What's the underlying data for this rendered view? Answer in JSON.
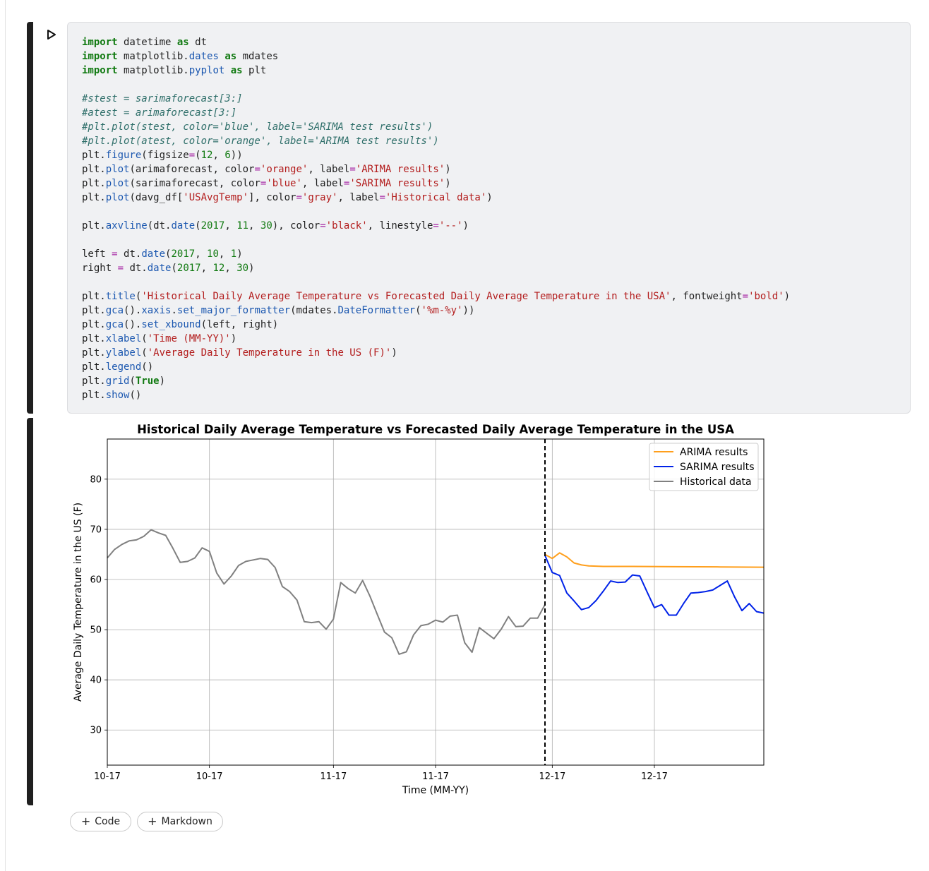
{
  "cell": {
    "code_lines": [
      [
        [
          "kw",
          "import"
        ],
        [
          "t",
          " datetime "
        ],
        [
          "kw",
          "as"
        ],
        [
          "t",
          " dt"
        ]
      ],
      [
        [
          "kw",
          "import"
        ],
        [
          "t",
          " matplotlib."
        ],
        [
          "fn",
          "dates"
        ],
        [
          "t",
          " "
        ],
        [
          "kw",
          "as"
        ],
        [
          "t",
          " mdates"
        ]
      ],
      [
        [
          "kw",
          "import"
        ],
        [
          "t",
          " matplotlib."
        ],
        [
          "fn",
          "pyplot"
        ],
        [
          "t",
          " "
        ],
        [
          "kw",
          "as"
        ],
        [
          "t",
          " plt"
        ]
      ],
      [],
      [
        [
          "cm",
          "#stest = sarimaforecast[3:]"
        ]
      ],
      [
        [
          "cm",
          "#atest = arimaforecast[3:]"
        ]
      ],
      [
        [
          "cm",
          "#plt.plot(stest, color='blue', label='SARIMA test results')"
        ]
      ],
      [
        [
          "cm",
          "#plt.plot(atest, color='orange', label='ARIMA test results')"
        ]
      ],
      [
        [
          "t",
          "plt."
        ],
        [
          "fn",
          "figure"
        ],
        [
          "t",
          "(figsize"
        ],
        [
          "op",
          "="
        ],
        [
          "t",
          "("
        ],
        [
          "nm",
          "12"
        ],
        [
          "t",
          ", "
        ],
        [
          "nm",
          "6"
        ],
        [
          "t",
          "))"
        ]
      ],
      [
        [
          "t",
          "plt."
        ],
        [
          "fn",
          "plot"
        ],
        [
          "t",
          "(arimaforecast, color"
        ],
        [
          "op",
          "="
        ],
        [
          "st",
          "'orange'"
        ],
        [
          "t",
          ", label"
        ],
        [
          "op",
          "="
        ],
        [
          "st",
          "'ARIMA results'"
        ],
        [
          "t",
          ")"
        ]
      ],
      [
        [
          "t",
          "plt."
        ],
        [
          "fn",
          "plot"
        ],
        [
          "t",
          "(sarimaforecast, color"
        ],
        [
          "op",
          "="
        ],
        [
          "st",
          "'blue'"
        ],
        [
          "t",
          ", label"
        ],
        [
          "op",
          "="
        ],
        [
          "st",
          "'SARIMA results'"
        ],
        [
          "t",
          ")"
        ]
      ],
      [
        [
          "t",
          "plt."
        ],
        [
          "fn",
          "plot"
        ],
        [
          "t",
          "(davg_df["
        ],
        [
          "st",
          "'USAvgTemp'"
        ],
        [
          "t",
          "], color"
        ],
        [
          "op",
          "="
        ],
        [
          "st",
          "'gray'"
        ],
        [
          "t",
          ", label"
        ],
        [
          "op",
          "="
        ],
        [
          "st",
          "'Historical data'"
        ],
        [
          "t",
          ")"
        ]
      ],
      [],
      [
        [
          "t",
          "plt."
        ],
        [
          "fn",
          "axvline"
        ],
        [
          "t",
          "(dt."
        ],
        [
          "fn",
          "date"
        ],
        [
          "t",
          "("
        ],
        [
          "nm",
          "2017"
        ],
        [
          "t",
          ", "
        ],
        [
          "nm",
          "11"
        ],
        [
          "t",
          ", "
        ],
        [
          "nm",
          "30"
        ],
        [
          "t",
          "), color"
        ],
        [
          "op",
          "="
        ],
        [
          "st",
          "'black'"
        ],
        [
          "t",
          ", linestyle"
        ],
        [
          "op",
          "="
        ],
        [
          "st",
          "'--'"
        ],
        [
          "t",
          ")"
        ]
      ],
      [],
      [
        [
          "t",
          "left "
        ],
        [
          "op",
          "="
        ],
        [
          "t",
          " dt."
        ],
        [
          "fn",
          "date"
        ],
        [
          "t",
          "("
        ],
        [
          "nm",
          "2017"
        ],
        [
          "t",
          ", "
        ],
        [
          "nm",
          "10"
        ],
        [
          "t",
          ", "
        ],
        [
          "nm",
          "1"
        ],
        [
          "t",
          ")"
        ]
      ],
      [
        [
          "t",
          "right "
        ],
        [
          "op",
          "="
        ],
        [
          "t",
          " dt."
        ],
        [
          "fn",
          "date"
        ],
        [
          "t",
          "("
        ],
        [
          "nm",
          "2017"
        ],
        [
          "t",
          ", "
        ],
        [
          "nm",
          "12"
        ],
        [
          "t",
          ", "
        ],
        [
          "nm",
          "30"
        ],
        [
          "t",
          ")"
        ]
      ],
      [],
      [
        [
          "t",
          "plt."
        ],
        [
          "fn",
          "title"
        ],
        [
          "t",
          "("
        ],
        [
          "st",
          "'Historical Daily Average Temperature vs Forecasted Daily Average Temperature in the USA'"
        ],
        [
          "t",
          ", fontweight"
        ],
        [
          "op",
          "="
        ],
        [
          "st",
          "'bold'"
        ],
        [
          "t",
          ")"
        ]
      ],
      [
        [
          "t",
          "plt."
        ],
        [
          "fn",
          "gca"
        ],
        [
          "t",
          "()."
        ],
        [
          "fn",
          "xaxis"
        ],
        [
          "t",
          "."
        ],
        [
          "fn",
          "set_major_formatter"
        ],
        [
          "t",
          "(mdates."
        ],
        [
          "fn",
          "DateFormatter"
        ],
        [
          "t",
          "("
        ],
        [
          "st",
          "'%m-%y'"
        ],
        [
          "t",
          "))"
        ]
      ],
      [
        [
          "t",
          "plt."
        ],
        [
          "fn",
          "gca"
        ],
        [
          "t",
          "()."
        ],
        [
          "fn",
          "set_xbound"
        ],
        [
          "t",
          "(left, right)"
        ]
      ],
      [
        [
          "t",
          "plt."
        ],
        [
          "fn",
          "xlabel"
        ],
        [
          "t",
          "("
        ],
        [
          "st",
          "'Time (MM-YY)'"
        ],
        [
          "t",
          ")"
        ]
      ],
      [
        [
          "t",
          "plt."
        ],
        [
          "fn",
          "ylabel"
        ],
        [
          "t",
          "("
        ],
        [
          "st",
          "'Average Daily Temperature in the US (F)'"
        ],
        [
          "t",
          ")"
        ]
      ],
      [
        [
          "t",
          "plt."
        ],
        [
          "fn",
          "legend"
        ],
        [
          "t",
          "()"
        ]
      ],
      [
        [
          "t",
          "plt."
        ],
        [
          "fn",
          "grid"
        ],
        [
          "t",
          "("
        ],
        [
          "kc",
          "True"
        ],
        [
          "t",
          ")"
        ]
      ],
      [
        [
          "t",
          "plt."
        ],
        [
          "fn",
          "show"
        ],
        [
          "t",
          "()"
        ]
      ]
    ]
  },
  "toolbar": {
    "add_code_label": "Code",
    "add_markdown_label": "Markdown"
  },
  "chart_data": {
    "type": "line",
    "title": "Historical Daily Average Temperature vs Forecasted Daily Average Temperature in the USA",
    "xlabel": "Time (MM-YY)",
    "ylabel": "Average Daily Temperature in the US (F)",
    "x_unit": "date",
    "xlim": [
      "2017-10-01",
      "2017-12-30"
    ],
    "ylim": [
      23,
      88
    ],
    "x_ticks": [
      {
        "date": "2017-10-01",
        "label": "10-17"
      },
      {
        "date": "2017-10-15",
        "label": "10-17"
      },
      {
        "date": "2017-11-01",
        "label": "11-17"
      },
      {
        "date": "2017-11-15",
        "label": "11-17"
      },
      {
        "date": "2017-12-01",
        "label": "12-17"
      },
      {
        "date": "2017-12-15",
        "label": "12-17"
      }
    ],
    "y_ticks": [
      30,
      40,
      50,
      60,
      70,
      80
    ],
    "grid": true,
    "legend_position": "top-right",
    "vline": {
      "date": "2017-11-30",
      "color": "#000000",
      "style": "dashed"
    },
    "series": [
      {
        "name": "ARIMA results",
        "color": "#ff9f1c",
        "points": [
          [
            "2017-11-30",
            65.0
          ],
          [
            "2017-12-01",
            64.2
          ],
          [
            "2017-12-02",
            65.3
          ],
          [
            "2017-12-03",
            64.5
          ],
          [
            "2017-12-04",
            63.3
          ],
          [
            "2017-12-05",
            62.9
          ],
          [
            "2017-12-06",
            62.7
          ],
          [
            "2017-12-08",
            62.6
          ],
          [
            "2017-12-12",
            62.6
          ],
          [
            "2017-12-18",
            62.55
          ],
          [
            "2017-12-24",
            62.5
          ],
          [
            "2017-12-30",
            62.45
          ]
        ]
      },
      {
        "name": "SARIMA results",
        "color": "#0022e8",
        "points": [
          [
            "2017-11-30",
            64.8
          ],
          [
            "2017-12-01",
            61.4
          ],
          [
            "2017-12-02",
            60.8
          ],
          [
            "2017-12-03",
            57.3
          ],
          [
            "2017-12-04",
            55.7
          ],
          [
            "2017-12-05",
            54.0
          ],
          [
            "2017-12-06",
            54.4
          ],
          [
            "2017-12-07",
            55.8
          ],
          [
            "2017-12-08",
            57.7
          ],
          [
            "2017-12-09",
            59.7
          ],
          [
            "2017-12-10",
            59.4
          ],
          [
            "2017-12-11",
            59.5
          ],
          [
            "2017-12-12",
            60.9
          ],
          [
            "2017-12-13",
            60.7
          ],
          [
            "2017-12-14",
            57.5
          ],
          [
            "2017-12-15",
            54.4
          ],
          [
            "2017-12-16",
            55.0
          ],
          [
            "2017-12-17",
            52.9
          ],
          [
            "2017-12-18",
            52.9
          ],
          [
            "2017-12-19",
            55.2
          ],
          [
            "2017-12-20",
            57.3
          ],
          [
            "2017-12-21",
            57.4
          ],
          [
            "2017-12-22",
            57.6
          ],
          [
            "2017-12-23",
            57.9
          ],
          [
            "2017-12-24",
            58.8
          ],
          [
            "2017-12-25",
            59.7
          ],
          [
            "2017-12-26",
            56.5
          ],
          [
            "2017-12-27",
            53.8
          ],
          [
            "2017-12-28",
            55.2
          ],
          [
            "2017-12-29",
            53.6
          ],
          [
            "2017-12-30",
            53.3
          ]
        ]
      },
      {
        "name": "Historical data",
        "color": "#808080",
        "points": [
          [
            "2017-10-01",
            64.3
          ],
          [
            "2017-10-02",
            66.0
          ],
          [
            "2017-10-03",
            67.0
          ],
          [
            "2017-10-04",
            67.7
          ],
          [
            "2017-10-05",
            67.9
          ],
          [
            "2017-10-06",
            68.6
          ],
          [
            "2017-10-07",
            69.9
          ],
          [
            "2017-10-08",
            69.3
          ],
          [
            "2017-10-09",
            68.8
          ],
          [
            "2017-10-10",
            66.2
          ],
          [
            "2017-10-11",
            63.4
          ],
          [
            "2017-10-12",
            63.6
          ],
          [
            "2017-10-13",
            64.3
          ],
          [
            "2017-10-14",
            66.3
          ],
          [
            "2017-10-15",
            65.6
          ],
          [
            "2017-10-16",
            61.3
          ],
          [
            "2017-10-17",
            59.1
          ],
          [
            "2017-10-18",
            60.7
          ],
          [
            "2017-10-19",
            62.8
          ],
          [
            "2017-10-20",
            63.6
          ],
          [
            "2017-10-21",
            63.9
          ],
          [
            "2017-10-22",
            64.2
          ],
          [
            "2017-10-23",
            64.0
          ],
          [
            "2017-10-24",
            62.4
          ],
          [
            "2017-10-25",
            58.6
          ],
          [
            "2017-10-26",
            57.6
          ],
          [
            "2017-10-27",
            55.9
          ],
          [
            "2017-10-28",
            51.6
          ],
          [
            "2017-10-29",
            51.4
          ],
          [
            "2017-10-30",
            51.6
          ],
          [
            "2017-10-31",
            50.1
          ],
          [
            "2017-11-01",
            52.1
          ],
          [
            "2017-11-02",
            59.4
          ],
          [
            "2017-11-03",
            58.2
          ],
          [
            "2017-11-04",
            57.3
          ],
          [
            "2017-11-05",
            59.8
          ],
          [
            "2017-11-06",
            56.7
          ],
          [
            "2017-11-07",
            53.1
          ],
          [
            "2017-11-08",
            49.5
          ],
          [
            "2017-11-09",
            48.4
          ],
          [
            "2017-11-10",
            45.1
          ],
          [
            "2017-11-11",
            45.6
          ],
          [
            "2017-11-12",
            49.0
          ],
          [
            "2017-11-13",
            50.8
          ],
          [
            "2017-11-14",
            51.1
          ],
          [
            "2017-11-15",
            51.9
          ],
          [
            "2017-11-16",
            51.5
          ],
          [
            "2017-11-17",
            52.7
          ],
          [
            "2017-11-18",
            52.9
          ],
          [
            "2017-11-19",
            47.4
          ],
          [
            "2017-11-20",
            45.5
          ],
          [
            "2017-11-21",
            50.4
          ],
          [
            "2017-11-22",
            49.3
          ],
          [
            "2017-11-23",
            48.2
          ],
          [
            "2017-11-24",
            50.1
          ],
          [
            "2017-11-25",
            52.6
          ],
          [
            "2017-11-26",
            50.6
          ],
          [
            "2017-11-27",
            50.7
          ],
          [
            "2017-11-28",
            52.3
          ],
          [
            "2017-11-29",
            52.3
          ],
          [
            "2017-11-30",
            55.0
          ]
        ]
      }
    ]
  }
}
